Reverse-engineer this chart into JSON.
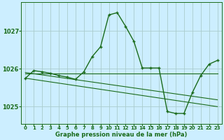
{
  "title": "Graphe pression niveau de la mer (hPa)",
  "background_color": "#cceeff",
  "grid_color": "#aacccc",
  "line_color": "#1a6b1a",
  "marker_color": "#1a6b1a",
  "xlim": [
    -0.5,
    23.5
  ],
  "ylim": [
    1024.55,
    1027.75
  ],
  "yticks": [
    1025,
    1026,
    1027
  ],
  "xticks": [
    0,
    1,
    2,
    3,
    4,
    5,
    6,
    7,
    8,
    9,
    10,
    11,
    12,
    13,
    14,
    15,
    16,
    17,
    18,
    19,
    20,
    21,
    22,
    23
  ],
  "main_series": {
    "x": [
      0,
      1,
      2,
      3,
      4,
      5,
      6,
      7,
      8,
      9,
      10,
      11,
      12,
      13,
      14,
      15,
      16,
      17,
      18,
      19,
      20,
      21,
      22,
      23
    ],
    "y": [
      1025.75,
      1025.95,
      1025.92,
      1025.88,
      1025.82,
      1025.78,
      1025.72,
      1025.92,
      1026.32,
      1026.58,
      1027.42,
      1027.48,
      1027.12,
      1026.72,
      1026.02,
      1026.02,
      1026.02,
      1024.87,
      1024.82,
      1024.82,
      1025.37,
      1025.82,
      1026.12,
      1026.22
    ]
  },
  "flat_line": {
    "x": [
      0,
      23
    ],
    "y": [
      1025.87,
      1025.87
    ]
  },
  "diagonal_lines": [
    {
      "x": [
        0,
        23
      ],
      "y": [
        1025.75,
        1025.0
      ]
    },
    {
      "x": [
        0,
        23
      ],
      "y": [
        1025.9,
        1025.18
      ]
    }
  ],
  "tick_fontsize": 5,
  "label_fontsize": 6,
  "figsize": [
    3.2,
    2.0
  ],
  "dpi": 100
}
